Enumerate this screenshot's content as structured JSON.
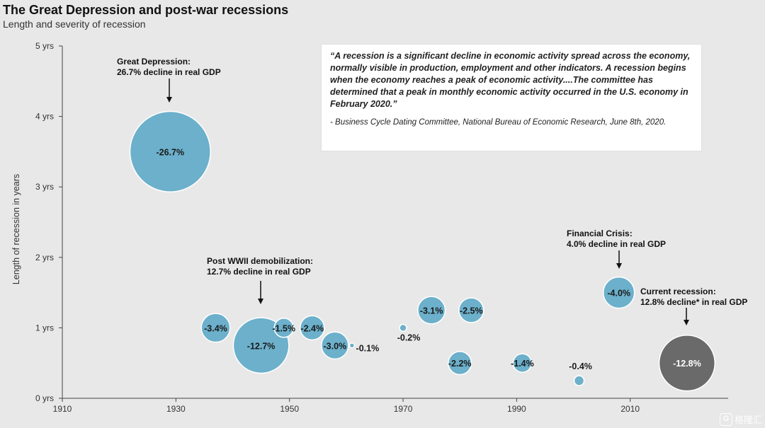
{
  "chart_data": {
    "type": "bubble",
    "title": "The Great Depression and post-war recessions",
    "subtitle": "Length and severity of recession",
    "ylabel": "Length of recession in years",
    "xlabel": "",
    "xlim": [
      1910,
      2025
    ],
    "ylim": [
      0,
      5
    ],
    "x_ticks": [
      "1910",
      "1930",
      "1950",
      "1970",
      "1990",
      "2010"
    ],
    "y_ticks": [
      "0 yrs",
      "1 yrs",
      "2 yrs",
      "3 yrs",
      "4 yrs",
      "5 yrs"
    ],
    "points": [
      {
        "year": 1929,
        "length": 3.5,
        "decline": 26.7,
        "label": "-26.7%",
        "color": "#6cb0cb"
      },
      {
        "year": 1937,
        "length": 1.0,
        "decline": 3.4,
        "label": "-3.4%",
        "color": "#6cb0cb"
      },
      {
        "year": 1945,
        "length": 0.75,
        "decline": 12.7,
        "label": "-12.7%",
        "color": "#6cb0cb"
      },
      {
        "year": 1949,
        "length": 1.0,
        "decline": 1.5,
        "label": "-1.5%",
        "color": "#6cb0cb"
      },
      {
        "year": 1954,
        "length": 1.0,
        "decline": 2.4,
        "label": "-2.4%",
        "color": "#6cb0cb"
      },
      {
        "year": 1958,
        "length": 0.75,
        "decline": 3.0,
        "label": "-3.0%",
        "color": "#6cb0cb"
      },
      {
        "year": 1961,
        "length": 0.75,
        "decline": 0.1,
        "label": "-0.1%",
        "color": "#6cb0cb"
      },
      {
        "year": 1970,
        "length": 1.0,
        "decline": 0.2,
        "label": "-0.2%",
        "color": "#6cb0cb"
      },
      {
        "year": 1975,
        "length": 1.25,
        "decline": 3.1,
        "label": "-3.1%",
        "color": "#6cb0cb"
      },
      {
        "year": 1980,
        "length": 0.5,
        "decline": 2.2,
        "label": "-2.2%",
        "color": "#6cb0cb"
      },
      {
        "year": 1982,
        "length": 1.25,
        "decline": 2.5,
        "label": "-2.5%",
        "color": "#6cb0cb"
      },
      {
        "year": 1991,
        "length": 0.5,
        "decline": 1.4,
        "label": "-1.4%",
        "color": "#6cb0cb"
      },
      {
        "year": 2001,
        "length": 0.25,
        "decline": 0.4,
        "label": "-0.4%",
        "color": "#6cb0cb"
      },
      {
        "year": 2008,
        "length": 1.5,
        "decline": 4.0,
        "label": "-4.0%",
        "color": "#6cb0cb"
      },
      {
        "year": 2020,
        "length": 0.5,
        "decline": 12.8,
        "label": "-12.8%",
        "color": "#6a6a6a"
      }
    ],
    "annotations": [
      {
        "line1": "Great Depression:",
        "line2": "26.7% decline in real GDP"
      },
      {
        "line1": "Post WWII demobilization:",
        "line2": "12.7% decline in real GDP"
      },
      {
        "line1": "Financial Crisis:",
        "line2": "4.0% decline in real GDP"
      },
      {
        "line1": "Current recession:",
        "line2": "12.8% decline* in real GDP"
      }
    ]
  },
  "quote": {
    "text": "“A recession is a significant decline in economic activity spread across the economy, normally visible in production, employment and other indicators. A recession begins when the economy reaches a peak of economic activity....The committee has determined that a peak in monthly economic activity occurred in the U.S. economy in February 2020.”",
    "source": "- Business Cycle Dating Committee, National Bureau of Economic Research, June 8th, 2020."
  },
  "watermark": {
    "text": "格隆汇",
    "logo": "G"
  }
}
